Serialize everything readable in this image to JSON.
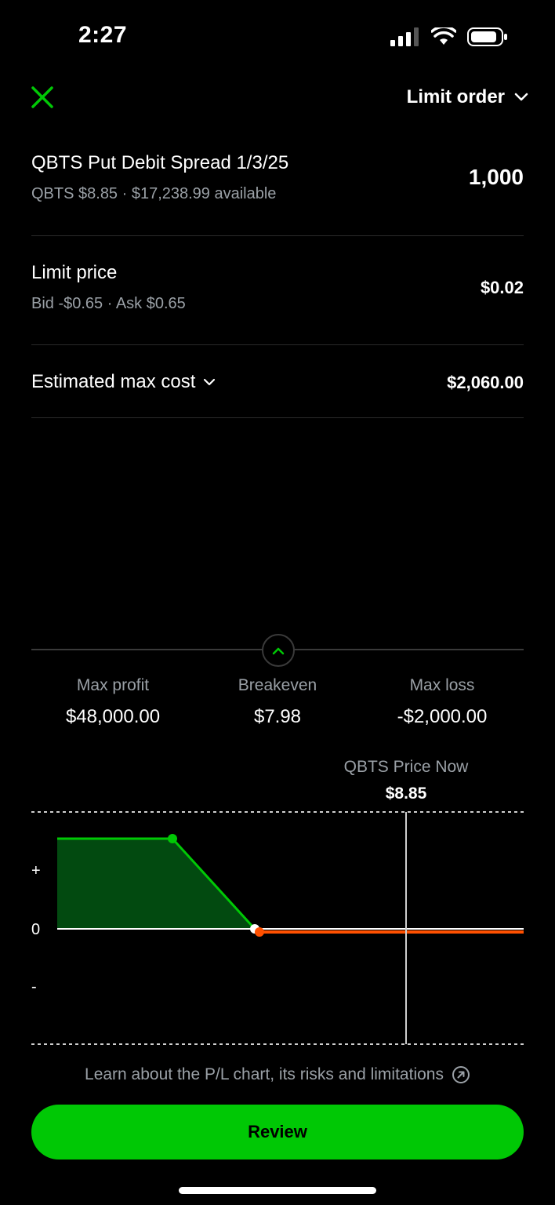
{
  "status_bar": {
    "time": "2:27"
  },
  "header": {
    "order_type": "Limit order"
  },
  "position": {
    "title": "QBTS Put Debit Spread 1/3/25",
    "subtitle": "QBTS $8.85 · $17,238.99 available",
    "quantity": "1,000"
  },
  "limit": {
    "title": "Limit price",
    "subtitle": "Bid -$0.65 · Ask $0.65",
    "value": "$0.02"
  },
  "estimate": {
    "label": "Estimated max cost",
    "value": "$2,060.00"
  },
  "summary": {
    "max_profit_label": "Max profit",
    "max_profit": "$48,000.00",
    "breakeven_label": "Breakeven",
    "breakeven": "$7.98",
    "max_loss_label": "Max loss",
    "max_loss": "-$2,000.00"
  },
  "price_now": {
    "label": "QBTS Price Now",
    "value": "$8.85"
  },
  "chart_data": {
    "type": "line",
    "y_tick_labels": [
      "+",
      "0",
      "-"
    ],
    "series": [
      {
        "points": [
          {
            "x": "low",
            "pl": 48000
          },
          {
            "x": "lower_strike",
            "pl": 48000
          },
          {
            "x": 7.98,
            "pl": 0
          },
          {
            "x": "upper_strike",
            "pl": -2000
          },
          {
            "x": "high",
            "pl": -2000
          }
        ]
      }
    ],
    "marker": {
      "label": "QBTS Price Now",
      "x": 8.85
    },
    "colors": {
      "profit": "#00c805",
      "profit_fill": "#024a10",
      "loss": "#ff5000",
      "zero": "#ffffff"
    }
  },
  "footer": {
    "learn_text": "Learn about the P/L chart, its risks and limitations",
    "review_label": "Review"
  },
  "colors": {
    "accent": "#00c805",
    "background": "#000000",
    "muted": "#9aa0a6"
  }
}
